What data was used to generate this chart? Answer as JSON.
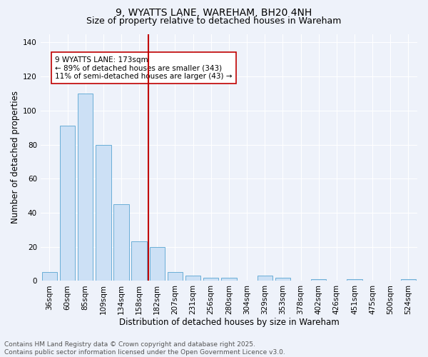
{
  "title": "9, WYATTS LANE, WAREHAM, BH20 4NH",
  "subtitle": "Size of property relative to detached houses in Wareham",
  "xlabel": "Distribution of detached houses by size in Wareham",
  "ylabel": "Number of detached properties",
  "categories": [
    "36sqm",
    "60sqm",
    "85sqm",
    "109sqm",
    "134sqm",
    "158sqm",
    "182sqm",
    "207sqm",
    "231sqm",
    "256sqm",
    "280sqm",
    "304sqm",
    "329sqm",
    "353sqm",
    "378sqm",
    "402sqm",
    "426sqm",
    "451sqm",
    "475sqm",
    "500sqm",
    "524sqm"
  ],
  "values": [
    5,
    91,
    110,
    80,
    45,
    23,
    20,
    5,
    3,
    2,
    2,
    0,
    3,
    2,
    0,
    1,
    0,
    1,
    0,
    0,
    1
  ],
  "bar_color": "#cce0f5",
  "bar_edge_color": "#6aaed6",
  "vline_color": "#c00000",
  "annotation_text": "9 WYATTS LANE: 173sqm\n← 89% of detached houses are smaller (343)\n11% of semi-detached houses are larger (43) →",
  "annotation_box_color": "white",
  "annotation_box_edge_color": "#c00000",
  "ylim": [
    0,
    145
  ],
  "yticks": [
    0,
    20,
    40,
    60,
    80,
    100,
    120,
    140
  ],
  "bg_color": "#eef2fa",
  "grid_color": "white",
  "footer_text": "Contains HM Land Registry data © Crown copyright and database right 2025.\nContains public sector information licensed under the Open Government Licence v3.0.",
  "title_fontsize": 10,
  "subtitle_fontsize": 9,
  "xlabel_fontsize": 8.5,
  "ylabel_fontsize": 8.5,
  "tick_fontsize": 7.5,
  "annotation_fontsize": 7.5,
  "footer_fontsize": 6.5
}
